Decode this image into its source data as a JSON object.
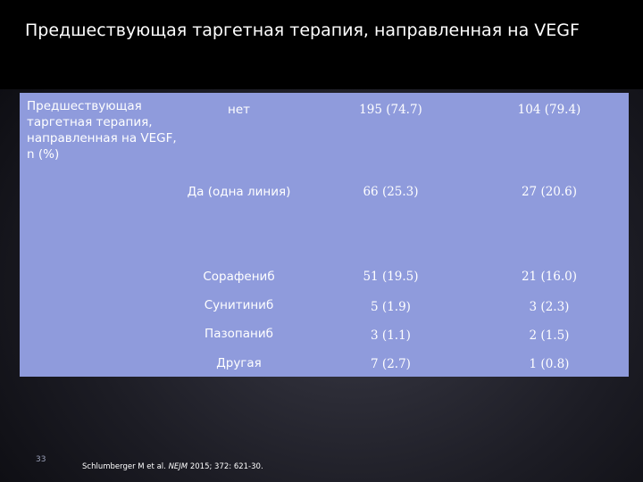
{
  "slide": {
    "title": "Предшествующая таргетная терапия, направленная на VEGF",
    "page_number": "33",
    "footnote": {
      "authors": "Schlumberger M et al.",
      "journal": "NEJM",
      "citation": "2015; 372: 621-30."
    }
  },
  "table": {
    "row_header": "Предшествующая таргетная терапия, направленная на VEGF, n (%)",
    "rows": [
      {
        "label": "нет",
        "col1": "195 (74.7)",
        "col2": "104 (79.4)"
      },
      {
        "label": "Да (одна линия)",
        "col1": "66 (25.3)",
        "col2": "27 (20.6)"
      },
      {
        "label": "Сорафениб",
        "col1": "51 (19.5)",
        "col2": "21 (16.0)"
      },
      {
        "label": "Сунитиниб",
        "col1": "5 (1.9)",
        "col2": "3 (2.3)"
      },
      {
        "label": "Пазопаниб",
        "col1": "3 (1.1)",
        "col2": "2 (1.5)"
      },
      {
        "label": "Другая",
        "col1": "7 (2.7)",
        "col2": "1 (0.8)"
      }
    ]
  }
}
